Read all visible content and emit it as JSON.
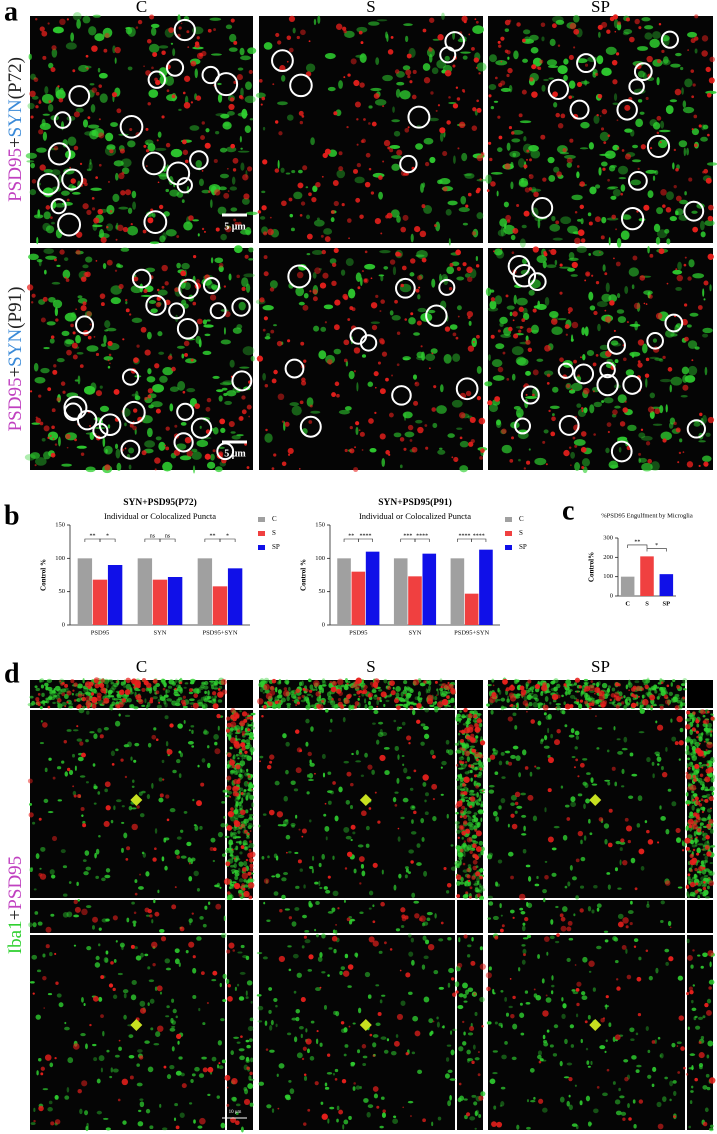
{
  "panel_labels": {
    "a": "a",
    "b": "b",
    "c": "c",
    "d": "d"
  },
  "panel_a": {
    "columns": [
      "C",
      "S",
      "SP"
    ],
    "rows": [
      {
        "psd": "PSD95",
        "plus": "+",
        "syn": "SYN",
        "tag": "(P72)",
        "scale_bar": "5 μm"
      },
      {
        "psd": "PSD95",
        "plus": "+",
        "syn": "SYN",
        "tag": "(P91)",
        "scale_bar": "5 μm"
      }
    ]
  },
  "chart_data": [
    {
      "type": "bar",
      "title": "SYN+PSD95(P72)",
      "subtitle": "Individual or Colocalized Puncta",
      "y_label": "Control %",
      "categories": [
        "PSD95",
        "SYN",
        "PSD95+SYN"
      ],
      "series": [
        {
          "name": "C",
          "color": "#a0a0a0",
          "values": [
            100,
            100,
            100
          ]
        },
        {
          "name": "S",
          "color": "#f04040",
          "values": [
            68,
            68,
            58
          ]
        },
        {
          "name": "SP",
          "color": "#1010e8",
          "values": [
            90,
            72,
            85
          ]
        }
      ],
      "annotations": [
        [
          "**",
          "*"
        ],
        [
          "ns",
          "ns"
        ],
        [
          "**",
          "*"
        ]
      ],
      "ylim": [
        0,
        150
      ],
      "yticks": [
        0,
        50,
        100,
        150
      ]
    },
    {
      "type": "bar",
      "title": "SYN+PSD95(P91)",
      "subtitle": "Individual or Colocalized Puncta",
      "y_label": "Control %",
      "categories": [
        "PSD95",
        "SYN",
        "PSD95+SYN"
      ],
      "series": [
        {
          "name": "C",
          "color": "#a0a0a0",
          "values": [
            100,
            100,
            100
          ]
        },
        {
          "name": "S",
          "color": "#f04040",
          "values": [
            80,
            73,
            47
          ]
        },
        {
          "name": "SP",
          "color": "#1010e8",
          "values": [
            110,
            107,
            113
          ]
        }
      ],
      "annotations": [
        [
          "**",
          "****"
        ],
        [
          "***",
          "****"
        ],
        [
          "****",
          "****"
        ]
      ],
      "ylim": [
        0,
        150
      ],
      "yticks": [
        0,
        50,
        100,
        150
      ]
    },
    {
      "type": "simplebar",
      "title": "%PSD95 Engulfment by Microglia",
      "y_label": "Control%",
      "categories": [
        "C",
        "S",
        "SP"
      ],
      "values": [
        100,
        205,
        113
      ],
      "colors": [
        "#a0a0a0",
        "#f04040",
        "#1010e8"
      ],
      "annotations": [
        "**",
        "*"
      ],
      "ylim": [
        0,
        300
      ],
      "yticks": [
        0,
        100,
        200,
        300
      ]
    }
  ],
  "panel_d": {
    "columns": [
      "C",
      "S",
      "SP"
    ],
    "label": {
      "iba": "Iba1",
      "plus": "+",
      "psd": "PSD95"
    },
    "scale_bar": "10 μm"
  }
}
